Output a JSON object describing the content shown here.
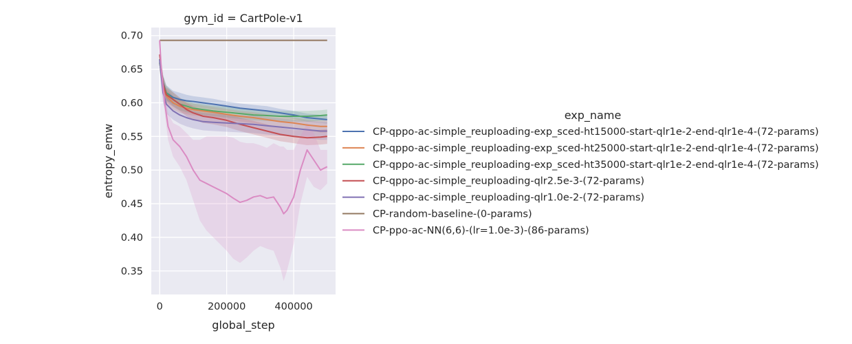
{
  "chart_data": {
    "type": "line",
    "title": "gym_id = CartPole-v1",
    "xlabel": "global_step",
    "ylabel": "entropy_emw",
    "xlim": [
      -25000,
      525000
    ],
    "ylim": [
      0.315,
      0.712
    ],
    "xticks": [
      0,
      200000,
      400000
    ],
    "xtick_labels": [
      "0",
      "200000",
      "400000"
    ],
    "yticks": [
      0.35,
      0.4,
      0.45,
      0.5,
      0.55,
      0.6,
      0.65,
      0.7
    ],
    "ytick_labels": [
      "0.35",
      "0.40",
      "0.45",
      "0.50",
      "0.55",
      "0.60",
      "0.65",
      "0.70"
    ],
    "grid": true,
    "background": "#eaeaf2",
    "legend": {
      "title": "exp_name",
      "placement": "right"
    },
    "series": [
      {
        "name": "CP-qppo-ac-simple_reuploading-exp_sced-ht15000-start-qlr1e-2-end-qlr1e-4-(72-params)",
        "color": "#4c72b0",
        "x": [
          0,
          10000,
          20000,
          40000,
          60000,
          80000,
          100000,
          130000,
          160000,
          200000,
          240000,
          280000,
          320000,
          360000,
          400000,
          440000,
          480000,
          500000
        ],
        "y": [
          0.665,
          0.63,
          0.615,
          0.608,
          0.605,
          0.603,
          0.602,
          0.6,
          0.598,
          0.595,
          0.592,
          0.59,
          0.588,
          0.585,
          0.582,
          0.578,
          0.576,
          0.575
        ],
        "band": [
          0.012,
          0.012,
          0.011,
          0.01,
          0.01,
          0.009,
          0.008,
          0.008,
          0.008,
          0.007,
          0.007,
          0.007,
          0.007,
          0.006,
          0.006,
          0.006,
          0.006,
          0.006
        ]
      },
      {
        "name": "CP-qppo-ac-simple_reuploading-exp_sced-ht25000-start-qlr1e-2-end-qlr1e-4-(72-params)",
        "color": "#dd8452",
        "x": [
          0,
          10000,
          20000,
          40000,
          60000,
          80000,
          100000,
          130000,
          160000,
          200000,
          240000,
          280000,
          320000,
          360000,
          400000,
          440000,
          480000,
          500000
        ],
        "y": [
          0.66,
          0.625,
          0.61,
          0.6,
          0.595,
          0.592,
          0.59,
          0.588,
          0.586,
          0.583,
          0.58,
          0.578,
          0.575,
          0.572,
          0.57,
          0.567,
          0.565,
          0.565
        ],
        "band": [
          0.012,
          0.012,
          0.011,
          0.01,
          0.01,
          0.009,
          0.009,
          0.008,
          0.008,
          0.008,
          0.008,
          0.008,
          0.008,
          0.008,
          0.008,
          0.008,
          0.009,
          0.009
        ]
      },
      {
        "name": "CP-qppo-ac-simple_reuploading-exp_sced-ht35000-start-qlr1e-2-end-qlr1e-4-(72-params)",
        "color": "#55a868",
        "x": [
          0,
          10000,
          20000,
          40000,
          60000,
          80000,
          100000,
          130000,
          160000,
          200000,
          240000,
          280000,
          320000,
          360000,
          400000,
          440000,
          480000,
          500000
        ],
        "y": [
          0.66,
          0.628,
          0.615,
          0.605,
          0.598,
          0.595,
          0.592,
          0.59,
          0.588,
          0.586,
          0.584,
          0.582,
          0.581,
          0.58,
          0.58,
          0.58,
          0.581,
          0.582
        ],
        "band": [
          0.012,
          0.012,
          0.011,
          0.01,
          0.009,
          0.009,
          0.008,
          0.008,
          0.008,
          0.008,
          0.008,
          0.008,
          0.008,
          0.008,
          0.008,
          0.008,
          0.008,
          0.008
        ]
      },
      {
        "name": "CP-qppo-ac-simple_reuploading-qlr2.5e-3-(72-params)",
        "color": "#c44e52",
        "x": [
          0,
          10000,
          20000,
          40000,
          60000,
          80000,
          100000,
          130000,
          160000,
          200000,
          240000,
          280000,
          320000,
          360000,
          400000,
          440000,
          480000,
          500000
        ],
        "y": [
          0.672,
          0.628,
          0.612,
          0.605,
          0.598,
          0.59,
          0.585,
          0.58,
          0.578,
          0.574,
          0.568,
          0.563,
          0.558,
          0.553,
          0.55,
          0.548,
          0.549,
          0.55
        ],
        "band": [
          0.012,
          0.012,
          0.011,
          0.011,
          0.01,
          0.01,
          0.01,
          0.01,
          0.01,
          0.01,
          0.01,
          0.01,
          0.01,
          0.01,
          0.01,
          0.011,
          0.011,
          0.011
        ]
      },
      {
        "name": "CP-qppo-ac-simple_reuploading-qlr1.0e-2-(72-params)",
        "color": "#8172b3",
        "x": [
          0,
          10000,
          20000,
          40000,
          60000,
          80000,
          100000,
          130000,
          160000,
          200000,
          240000,
          280000,
          320000,
          360000,
          400000,
          440000,
          480000,
          500000
        ],
        "y": [
          0.663,
          0.615,
          0.598,
          0.588,
          0.582,
          0.578,
          0.575,
          0.572,
          0.571,
          0.57,
          0.569,
          0.568,
          0.566,
          0.564,
          0.562,
          0.56,
          0.558,
          0.558
        ],
        "band": [
          0.015,
          0.015,
          0.014,
          0.013,
          0.013,
          0.013,
          0.013,
          0.013,
          0.013,
          0.013,
          0.013,
          0.013,
          0.013,
          0.013,
          0.013,
          0.013,
          0.013,
          0.013
        ]
      },
      {
        "name": "CP-random-baseline-(0-params)",
        "color": "#937860",
        "x": [
          0,
          500000
        ],
        "y": [
          0.693,
          0.693
        ],
        "band": [
          0,
          0
        ]
      },
      {
        "name": "CP-ppo-ac-NN(6,6)-(lr=1.0e-3)-(86-params)",
        "color": "#da8bc3",
        "x": [
          0,
          5000,
          15000,
          25000,
          40000,
          60000,
          80000,
          100000,
          120000,
          140000,
          160000,
          180000,
          200000,
          220000,
          240000,
          260000,
          280000,
          300000,
          320000,
          340000,
          360000,
          370000,
          380000,
          400000,
          420000,
          440000,
          460000,
          480000,
          500000
        ],
        "y": [
          0.693,
          0.65,
          0.6,
          0.565,
          0.545,
          0.535,
          0.52,
          0.5,
          0.485,
          0.48,
          0.475,
          0.47,
          0.465,
          0.458,
          0.452,
          0.455,
          0.46,
          0.462,
          0.458,
          0.46,
          0.445,
          0.435,
          0.44,
          0.46,
          0.5,
          0.53,
          0.515,
          0.5,
          0.505
        ],
        "band": [
          0.0,
          0.01,
          0.015,
          0.02,
          0.025,
          0.03,
          0.035,
          0.045,
          0.06,
          0.07,
          0.075,
          0.08,
          0.085,
          0.09,
          0.09,
          0.085,
          0.08,
          0.075,
          0.075,
          0.08,
          0.09,
          0.1,
          0.09,
          0.07,
          0.05,
          0.04,
          0.04,
          0.03,
          0.025
        ]
      }
    ]
  }
}
